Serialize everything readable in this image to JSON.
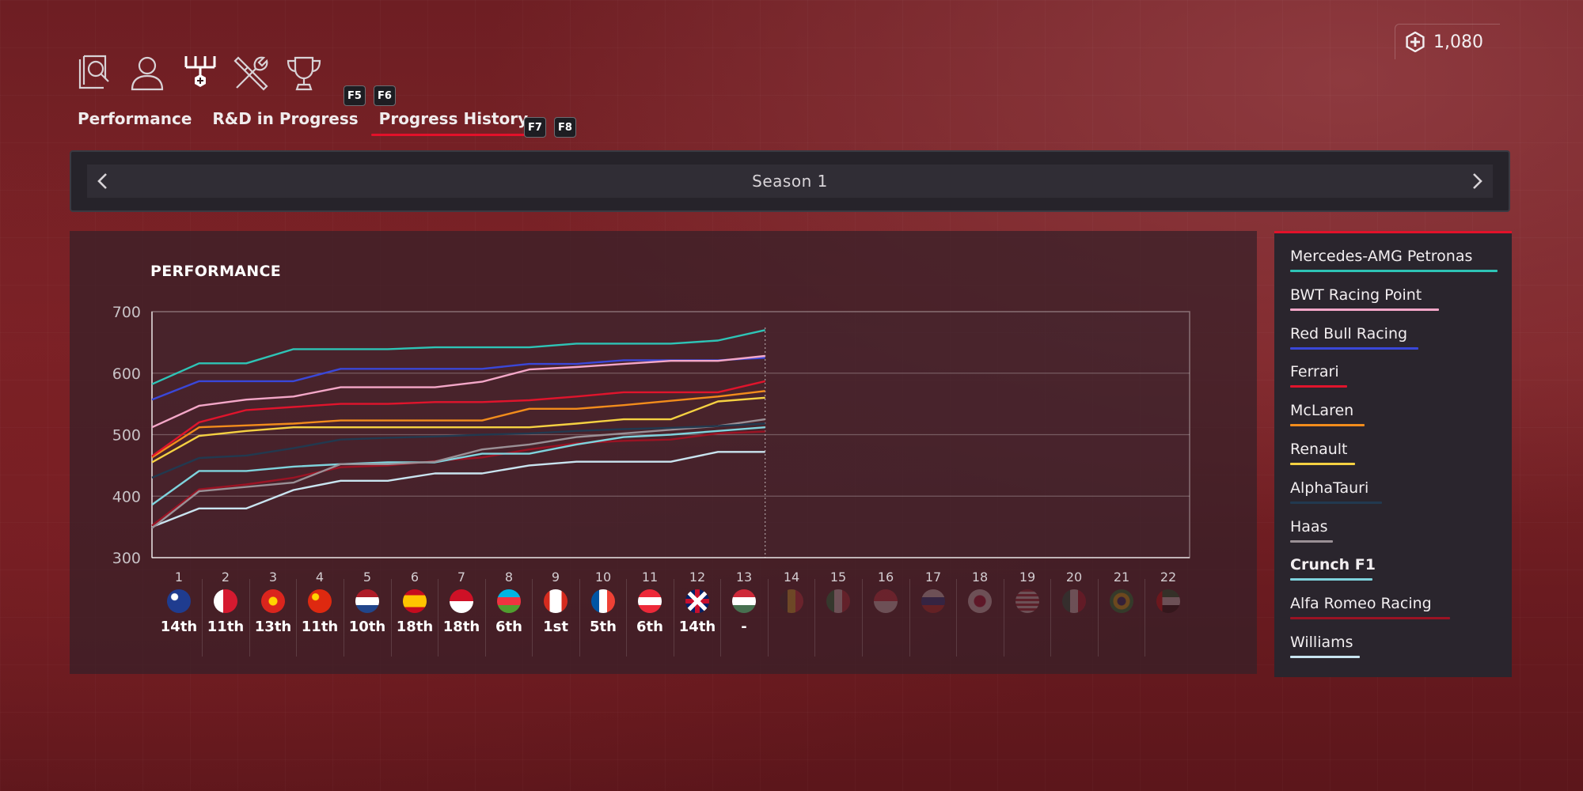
{
  "currency": {
    "amount": "1,080",
    "icon": "plus-hex-icon"
  },
  "nav": {
    "icons": [
      "magnifier-document-icon",
      "person-icon",
      "upgrade-tree-icon",
      "tools-icon",
      "trophy-icon"
    ],
    "tabs": [
      {
        "label": "Performance",
        "active": false
      },
      {
        "label": "R&D in Progress",
        "active": false
      },
      {
        "label": "Progress History",
        "active": true
      }
    ],
    "keys": {
      "f5": "F5",
      "f6": "F6",
      "f7": "F7",
      "f8": "F8"
    }
  },
  "season": {
    "label": "Season 1"
  },
  "chart": {
    "title": "PERFORMANCE",
    "rounds": [
      {
        "num": "1",
        "place": "14th",
        "flag": "australia"
      },
      {
        "num": "2",
        "place": "11th",
        "flag": "bahrain"
      },
      {
        "num": "3",
        "place": "13th",
        "flag": "vietnam"
      },
      {
        "num": "4",
        "place": "11th",
        "flag": "china"
      },
      {
        "num": "5",
        "place": "10th",
        "flag": "netherlands"
      },
      {
        "num": "6",
        "place": "18th",
        "flag": "spain"
      },
      {
        "num": "7",
        "place": "18th",
        "flag": "monaco"
      },
      {
        "num": "8",
        "place": "6th",
        "flag": "azerbaijan"
      },
      {
        "num": "9",
        "place": "1st",
        "flag": "canada"
      },
      {
        "num": "10",
        "place": "5th",
        "flag": "france"
      },
      {
        "num": "11",
        "place": "6th",
        "flag": "austria"
      },
      {
        "num": "12",
        "place": "14th",
        "flag": "great-britain"
      },
      {
        "num": "13",
        "place": "-",
        "flag": "hungary"
      },
      {
        "num": "14",
        "place": "",
        "flag": "belgium"
      },
      {
        "num": "15",
        "place": "",
        "flag": "italy"
      },
      {
        "num": "16",
        "place": "",
        "flag": "singapore"
      },
      {
        "num": "17",
        "place": "",
        "flag": "russia"
      },
      {
        "num": "18",
        "place": "",
        "flag": "japan"
      },
      {
        "num": "19",
        "place": "",
        "flag": "usa"
      },
      {
        "num": "20",
        "place": "",
        "flag": "mexico"
      },
      {
        "num": "21",
        "place": "",
        "flag": "brazil"
      },
      {
        "num": "22",
        "place": "",
        "flag": "abu-dhabi"
      }
    ]
  },
  "chart_data": {
    "type": "line",
    "title": "PERFORMANCE",
    "xlabel": "",
    "ylabel": "",
    "ylim": [
      300,
      700
    ],
    "yticks": [
      "300",
      "400",
      "500",
      "600",
      "700"
    ],
    "xlim": [
      0,
      22
    ],
    "current_round": 13,
    "grid": true,
    "series": [
      {
        "name": "Mercedes-AMG Petronas",
        "color": "#2ec4b6",
        "x": [
          0,
          1,
          2,
          3,
          4,
          5,
          6,
          7,
          8,
          9,
          10,
          11,
          12,
          13
        ],
        "values": [
          582,
          616,
          616,
          639,
          639,
          639,
          642,
          642,
          642,
          648,
          648,
          648,
          653,
          670
        ]
      },
      {
        "name": "BWT Racing Point",
        "color": "#f4a7c8",
        "x": [
          0,
          1,
          2,
          3,
          4,
          5,
          6,
          7,
          8,
          9,
          10,
          11,
          12,
          13
        ],
        "values": [
          512,
          547,
          557,
          562,
          577,
          577,
          577,
          586,
          606,
          610,
          615,
          620,
          620,
          628
        ]
      },
      {
        "name": "Red Bull Racing",
        "color": "#3a47d8",
        "x": [
          0,
          1,
          2,
          3,
          4,
          5,
          6,
          7,
          8,
          9,
          10,
          11,
          12,
          13
        ],
        "values": [
          557,
          587,
          587,
          587,
          607,
          607,
          607,
          607,
          615,
          615,
          621,
          621,
          621,
          625
        ]
      },
      {
        "name": "Ferrari",
        "color": "#e0142c",
        "x": [
          0,
          1,
          2,
          3,
          4,
          5,
          6,
          7,
          8,
          9,
          10,
          11,
          12,
          13
        ],
        "values": [
          465,
          520,
          540,
          545,
          550,
          550,
          553,
          553,
          556,
          562,
          569,
          569,
          569,
          587
        ]
      },
      {
        "name": "McLaren",
        "color": "#f28c1c",
        "x": [
          0,
          1,
          2,
          3,
          4,
          5,
          6,
          7,
          8,
          9,
          10,
          11,
          12,
          13
        ],
        "values": [
          463,
          512,
          515,
          518,
          523,
          523,
          523,
          523,
          542,
          542,
          548,
          555,
          562,
          571
        ]
      },
      {
        "name": "Renault",
        "color": "#f5d142",
        "x": [
          0,
          1,
          2,
          3,
          4,
          5,
          6,
          7,
          8,
          9,
          10,
          11,
          12,
          13
        ],
        "values": [
          455,
          498,
          506,
          512,
          512,
          512,
          512,
          512,
          512,
          518,
          525,
          525,
          554,
          560
        ]
      },
      {
        "name": "AlphaTauri",
        "color": "#22394f",
        "x": [
          0,
          1,
          2,
          3,
          4,
          5,
          6,
          7,
          8,
          9,
          10,
          11,
          12,
          13
        ],
        "values": [
          430,
          462,
          466,
          478,
          492,
          495,
          497,
          500,
          502,
          506,
          509,
          511,
          514,
          518
        ]
      },
      {
        "name": "Haas",
        "color": "#9a9096",
        "x": [
          0,
          1,
          2,
          3,
          4,
          5,
          6,
          7,
          8,
          9,
          10,
          11,
          12,
          13
        ],
        "values": [
          348,
          408,
          415,
          422,
          452,
          452,
          456,
          476,
          484,
          496,
          502,
          508,
          514,
          525
        ]
      },
      {
        "name": "Crunch F1",
        "color": "#7fd3dd",
        "x": [
          0,
          1,
          2,
          3,
          4,
          5,
          6,
          7,
          8,
          9,
          10,
          11,
          12,
          13
        ],
        "values": [
          386,
          441,
          441,
          448,
          452,
          455,
          455,
          469,
          469,
          484,
          496,
          500,
          506,
          512
        ]
      },
      {
        "name": "Alfa Romeo Racing",
        "color": "#9b1324",
        "x": [
          0,
          1,
          2,
          3,
          4,
          5,
          6,
          7,
          8,
          9,
          10,
          11,
          12,
          13
        ],
        "values": [
          352,
          411,
          419,
          430,
          447,
          450,
          457,
          463,
          476,
          486,
          490,
          492,
          502,
          505
        ]
      },
      {
        "name": "Williams",
        "color": "#c9e4f0",
        "x": [
          0,
          1,
          2,
          3,
          4,
          5,
          6,
          7,
          8,
          9,
          10,
          11,
          12,
          13
        ],
        "values": [
          350,
          380,
          380,
          410,
          425,
          425,
          437,
          437,
          450,
          456,
          456,
          456,
          472,
          472
        ]
      }
    ]
  },
  "legend": {
    "items": [
      {
        "label": "Mercedes-AMG Petronas",
        "color": "#2ec4b6",
        "player": false
      },
      {
        "label": "BWT Racing Point",
        "color": "#f4a7c8",
        "player": false
      },
      {
        "label": "Red Bull Racing",
        "color": "#3a47d8",
        "player": false
      },
      {
        "label": "Ferrari",
        "color": "#e0142c",
        "player": false
      },
      {
        "label": "McLaren",
        "color": "#f28c1c",
        "player": false
      },
      {
        "label": "Renault",
        "color": "#f5d142",
        "player": false
      },
      {
        "label": "AlphaTauri",
        "color": "#22394f",
        "player": false
      },
      {
        "label": "Haas",
        "color": "#9a9096",
        "player": false
      },
      {
        "label": "Crunch F1",
        "color": "#7fd3dd",
        "player": true
      },
      {
        "label": "Alfa Romeo Racing",
        "color": "#9b1324",
        "player": false
      },
      {
        "label": "Williams",
        "color": "#c9e4f0",
        "player": false
      }
    ]
  }
}
